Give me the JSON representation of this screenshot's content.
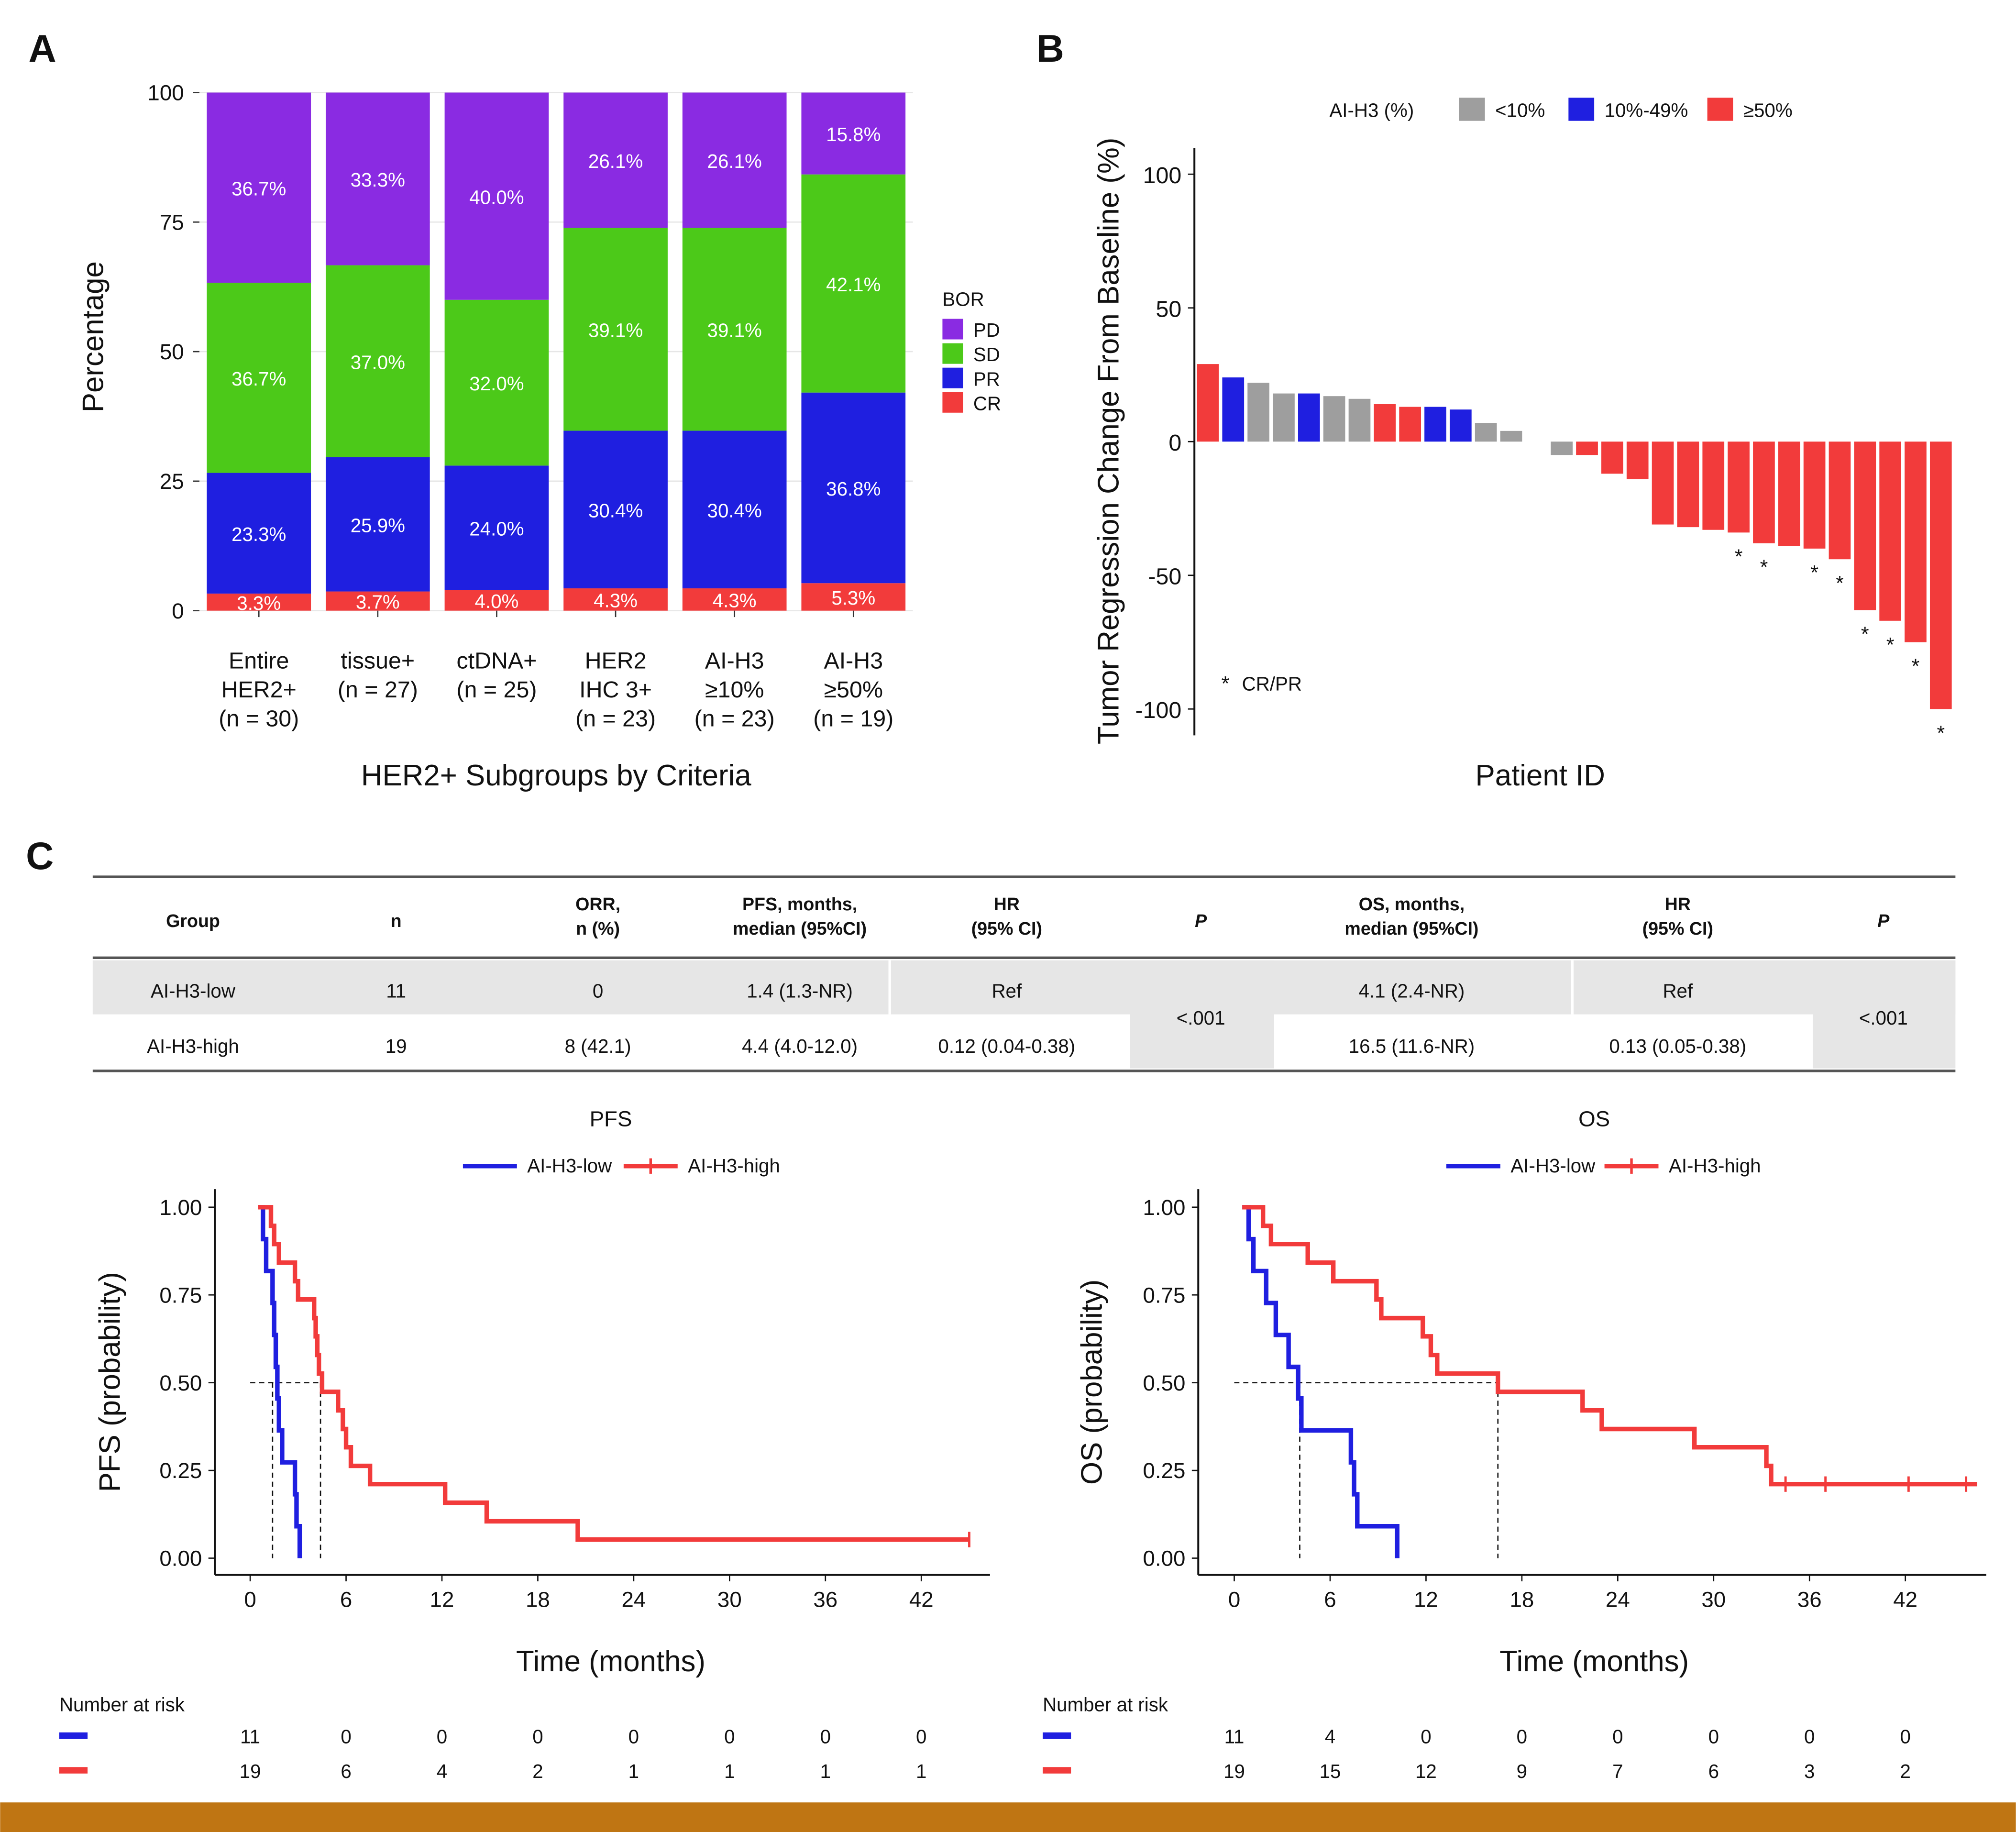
{
  "panel_labels": {
    "a": "A",
    "b": "B",
    "c": "C"
  },
  "colors": {
    "pd": "#8a2be2",
    "sd": "#4cc919",
    "pr": "#1f1fe0",
    "cr": "#f23b3b",
    "gray": "#9e9e9e",
    "low": "#1f1fe0",
    "high": "#f23b3b",
    "footer": "#bf7513"
  },
  "chart_data": [
    {
      "type": "bar",
      "panel": "A",
      "stacked": true,
      "title": "",
      "xlabel": "HER2+ Subgroups by Criteria",
      "ylabel": "Percentage",
      "ylim": [
        0,
        100
      ],
      "yticks": [
        "0",
        "25",
        "50",
        "75",
        "100"
      ],
      "categories": [
        [
          "Entire",
          "HER2+",
          "(n = 30)"
        ],
        [
          "tissue+",
          "(n = 27)"
        ],
        [
          "ctDNA+",
          "(n = 25)"
        ],
        [
          "HER2",
          "IHC 3+",
          "(n = 23)"
        ],
        [
          "AI-H3",
          "≥10%",
          "(n = 23)"
        ],
        [
          "AI-H3",
          "≥50%",
          "(n = 19)"
        ]
      ],
      "series": [
        {
          "name": "CR",
          "values": [
            3.3,
            3.7,
            4.0,
            4.3,
            4.3,
            5.3
          ],
          "labels": [
            "3.3%",
            "3.7%",
            "4.0%",
            "4.3%",
            "4.3%",
            "5.3%"
          ]
        },
        {
          "name": "PR",
          "values": [
            23.3,
            25.9,
            24.0,
            30.4,
            30.4,
            36.8
          ],
          "labels": [
            "23.3%",
            "25.9%",
            "24.0%",
            "30.4%",
            "30.4%",
            "36.8%"
          ]
        },
        {
          "name": "SD",
          "values": [
            36.7,
            37.0,
            32.0,
            39.1,
            39.1,
            42.1
          ],
          "labels": [
            "36.7%",
            "37.0%",
            "32.0%",
            "39.1%",
            "39.1%",
            "42.1%"
          ]
        },
        {
          "name": "PD",
          "values": [
            36.7,
            33.3,
            40.0,
            26.1,
            26.1,
            15.8
          ],
          "labels": [
            "36.7%",
            "33.3%",
            "40.0%",
            "26.1%",
            "26.1%",
            "15.8%"
          ]
        }
      ],
      "legend": {
        "title": "BOR",
        "items": [
          "PD",
          "SD",
          "PR",
          "CR"
        ],
        "placement": "right"
      }
    },
    {
      "type": "bar",
      "panel": "B",
      "title": "",
      "xlabel": "Patient ID",
      "ylabel": "Tumor Regression Change From Baseline (%)",
      "ylim": [
        -110,
        110
      ],
      "yticks": [
        "100",
        "50",
        "0",
        "-50",
        "-100"
      ],
      "legend": {
        "title": "AI-H3 (%)",
        "items": [
          "<10%",
          "10%-49%",
          "≥50%"
        ],
        "placement": "top"
      },
      "note": "* CR/PR",
      "patients": [
        {
          "value": 29,
          "group": "≥50%",
          "star": false
        },
        {
          "value": 24,
          "group": "10%-49%",
          "star": false
        },
        {
          "value": 22,
          "group": "<10%",
          "star": false
        },
        {
          "value": 18,
          "group": "<10%",
          "star": false
        },
        {
          "value": 18,
          "group": "10%-49%",
          "star": false
        },
        {
          "value": 17,
          "group": "<10%",
          "star": false
        },
        {
          "value": 16,
          "group": "<10%",
          "star": false
        },
        {
          "value": 14,
          "group": "≥50%",
          "star": false
        },
        {
          "value": 13,
          "group": "≥50%",
          "star": false
        },
        {
          "value": 13,
          "group": "10%-49%",
          "star": false
        },
        {
          "value": 12,
          "group": "10%-49%",
          "star": false
        },
        {
          "value": 7,
          "group": "<10%",
          "star": false
        },
        {
          "value": 4,
          "group": "<10%",
          "star": false
        },
        {
          "value": 0,
          "group": "",
          "star": false
        },
        {
          "value": -5,
          "group": "<10%",
          "star": false
        },
        {
          "value": -5,
          "group": "≥50%",
          "star": false
        },
        {
          "value": -12,
          "group": "≥50%",
          "star": false
        },
        {
          "value": -14,
          "group": "≥50%",
          "star": false
        },
        {
          "value": -31,
          "group": "≥50%",
          "star": false
        },
        {
          "value": -32,
          "group": "≥50%",
          "star": false
        },
        {
          "value": -33,
          "group": "≥50%",
          "star": false
        },
        {
          "value": -34,
          "group": "≥50%",
          "star": true
        },
        {
          "value": -38,
          "group": "≥50%",
          "star": true
        },
        {
          "value": -39,
          "group": "≥50%",
          "star": false
        },
        {
          "value": -40,
          "group": "≥50%",
          "star": true
        },
        {
          "value": -44,
          "group": "≥50%",
          "star": true
        },
        {
          "value": -63,
          "group": "≥50%",
          "star": true
        },
        {
          "value": -67,
          "group": "≥50%",
          "star": true
        },
        {
          "value": -75,
          "group": "≥50%",
          "star": true
        },
        {
          "value": -100,
          "group": "≥50%",
          "star": true
        }
      ]
    },
    {
      "type": "table",
      "panel": "C",
      "headers": [
        [
          "Group"
        ],
        [
          "n"
        ],
        [
          "ORR,",
          "n (%)"
        ],
        [
          "PFS, months,",
          "median (95%CI)"
        ],
        [
          "HR",
          "(95% CI)"
        ],
        [
          "P"
        ],
        [
          "OS, months,",
          "median (95%CI)"
        ],
        [
          "HR",
          "(95% CI)"
        ],
        [
          "P"
        ]
      ],
      "rows": [
        [
          "AI-H3-low",
          "11",
          "0",
          "1.4 (1.3-NR)",
          "Ref",
          "4.1 (2.4-NR)",
          "Ref"
        ],
        [
          "AI-H3-high",
          "19",
          "8 (42.1)",
          "4.4 (4.0-12.0)",
          "0.12 (0.04-0.38)",
          "16.5 (11.6-NR)",
          "0.13 (0.05-0.38)"
        ]
      ],
      "p_values": [
        "<.001",
        "<.001"
      ]
    },
    {
      "type": "line",
      "panel": "C-PFS",
      "title": "PFS",
      "xlabel": "Time (months)",
      "ylabel": "PFS (probability)",
      "xlim": [
        0,
        45
      ],
      "ylim": [
        0,
        1
      ],
      "xticks": [
        0,
        6,
        12,
        18,
        24,
        30,
        36,
        42
      ],
      "yticks": [
        "0.00",
        "0.25",
        "0.50",
        "0.75",
        "1.00"
      ],
      "medians": [
        1.4,
        4.4
      ],
      "series": [
        {
          "name": "AI-H3-low",
          "steps": [
            [
              0.5,
              1.0
            ],
            [
              0.8,
              0.909
            ],
            [
              1.0,
              0.818
            ],
            [
              1.4,
              0.727
            ],
            [
              1.5,
              0.636
            ],
            [
              1.6,
              0.545
            ],
            [
              1.7,
              0.455
            ],
            [
              1.8,
              0.364
            ],
            [
              2.0,
              0.273
            ],
            [
              2.8,
              0.182
            ],
            [
              2.9,
              0.091
            ],
            [
              3.1,
              0.0
            ]
          ],
          "censor": []
        },
        {
          "name": "AI-H3-high",
          "steps": [
            [
              0.5,
              1.0
            ],
            [
              1.3,
              0.947
            ],
            [
              1.5,
              0.895
            ],
            [
              1.8,
              0.842
            ],
            [
              2.8,
              0.789
            ],
            [
              3.0,
              0.737
            ],
            [
              4.0,
              0.684
            ],
            [
              4.1,
              0.632
            ],
            [
              4.2,
              0.579
            ],
            [
              4.3,
              0.526
            ],
            [
              4.5,
              0.474
            ],
            [
              5.5,
              0.421
            ],
            [
              5.8,
              0.368
            ],
            [
              6.0,
              0.316
            ],
            [
              6.3,
              0.263
            ],
            [
              7.5,
              0.211
            ],
            [
              12.2,
              0.158
            ],
            [
              14.8,
              0.105
            ],
            [
              20.5,
              0.053
            ]
          ],
          "end": 45.0,
          "censor": [
            45.0
          ]
        }
      ],
      "risk_table": {
        "title": "Number at risk",
        "times": [
          "0",
          "6",
          "12",
          "18",
          "24",
          "30",
          "36",
          "42"
        ],
        "rows": [
          {
            "name": "AI-H3-low",
            "counts": [
              "11",
              "0",
              "0",
              "0",
              "0",
              "0",
              "0",
              "0"
            ]
          },
          {
            "name": "AI-H3-high",
            "counts": [
              "19",
              "6",
              "4",
              "2",
              "1",
              "1",
              "1",
              "1"
            ]
          }
        ]
      }
    },
    {
      "type": "line",
      "panel": "C-OS",
      "title": "OS",
      "xlabel": "Time (months)",
      "ylabel": "OS (probability)",
      "xlim": [
        0,
        46.5
      ],
      "ylim": [
        0,
        1
      ],
      "xticks": [
        0,
        6,
        12,
        18,
        24,
        30,
        36,
        42
      ],
      "yticks": [
        "0.00",
        "0.25",
        "0.50",
        "0.75",
        "1.00"
      ],
      "medians": [
        4.1,
        16.5
      ],
      "series": [
        {
          "name": "AI-H3-low",
          "steps": [
            [
              0.5,
              1.0
            ],
            [
              0.9,
              0.909
            ],
            [
              1.2,
              0.818
            ],
            [
              2.0,
              0.727
            ],
            [
              2.6,
              0.636
            ],
            [
              3.4,
              0.545
            ],
            [
              4.0,
              0.455
            ],
            [
              4.2,
              0.364
            ],
            [
              7.3,
              0.273
            ],
            [
              7.5,
              0.182
            ],
            [
              7.7,
              0.091
            ],
            [
              10.2,
              0.0
            ]
          ],
          "censor": []
        },
        {
          "name": "AI-H3-high",
          "steps": [
            [
              0.5,
              1.0
            ],
            [
              1.8,
              0.947
            ],
            [
              2.3,
              0.895
            ],
            [
              4.6,
              0.842
            ],
            [
              6.2,
              0.789
            ],
            [
              8.9,
              0.737
            ],
            [
              9.2,
              0.684
            ],
            [
              11.8,
              0.632
            ],
            [
              12.3,
              0.579
            ],
            [
              12.7,
              0.526
            ],
            [
              16.5,
              0.474
            ],
            [
              21.8,
              0.421
            ],
            [
              23.0,
              0.368
            ],
            [
              28.8,
              0.316
            ],
            [
              33.3,
              0.263
            ],
            [
              33.6,
              0.211
            ]
          ],
          "end": 46.5,
          "censor": [
            34.5,
            37.0,
            42.2,
            45.8
          ]
        }
      ],
      "risk_table": {
        "title": "Number at risk",
        "times": [
          "0",
          "6",
          "12",
          "18",
          "24",
          "30",
          "36",
          "42"
        ],
        "rows": [
          {
            "name": "AI-H3-low",
            "counts": [
              "11",
              "4",
              "0",
              "0",
              "0",
              "0",
              "0",
              "0"
            ]
          },
          {
            "name": "AI-H3-high",
            "counts": [
              "19",
              "15",
              "12",
              "9",
              "7",
              "6",
              "3",
              "2"
            ]
          }
        ]
      }
    }
  ]
}
